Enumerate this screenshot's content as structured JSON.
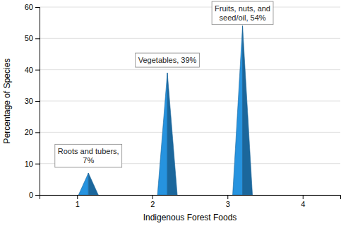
{
  "chart_data": {
    "type": "bar",
    "xlabel": "Indigenous Forest Foods",
    "ylabel": "Percentage of Species",
    "x": [
      1.15,
      2.2,
      3.2
    ],
    "values": [
      7,
      39,
      54
    ],
    "annotations": [
      "Roots and tubers,\n7%",
      "Vegetables, 39%",
      "Fruits, nuts, and\nseed/oil, 54%"
    ],
    "xlim": [
      0.5,
      4.5
    ],
    "xticks": [
      1,
      2,
      3,
      4
    ],
    "ylim": [
      0,
      60
    ],
    "yticks": [
      0,
      10,
      20,
      30,
      40,
      50,
      60
    ],
    "grid": true
  }
}
